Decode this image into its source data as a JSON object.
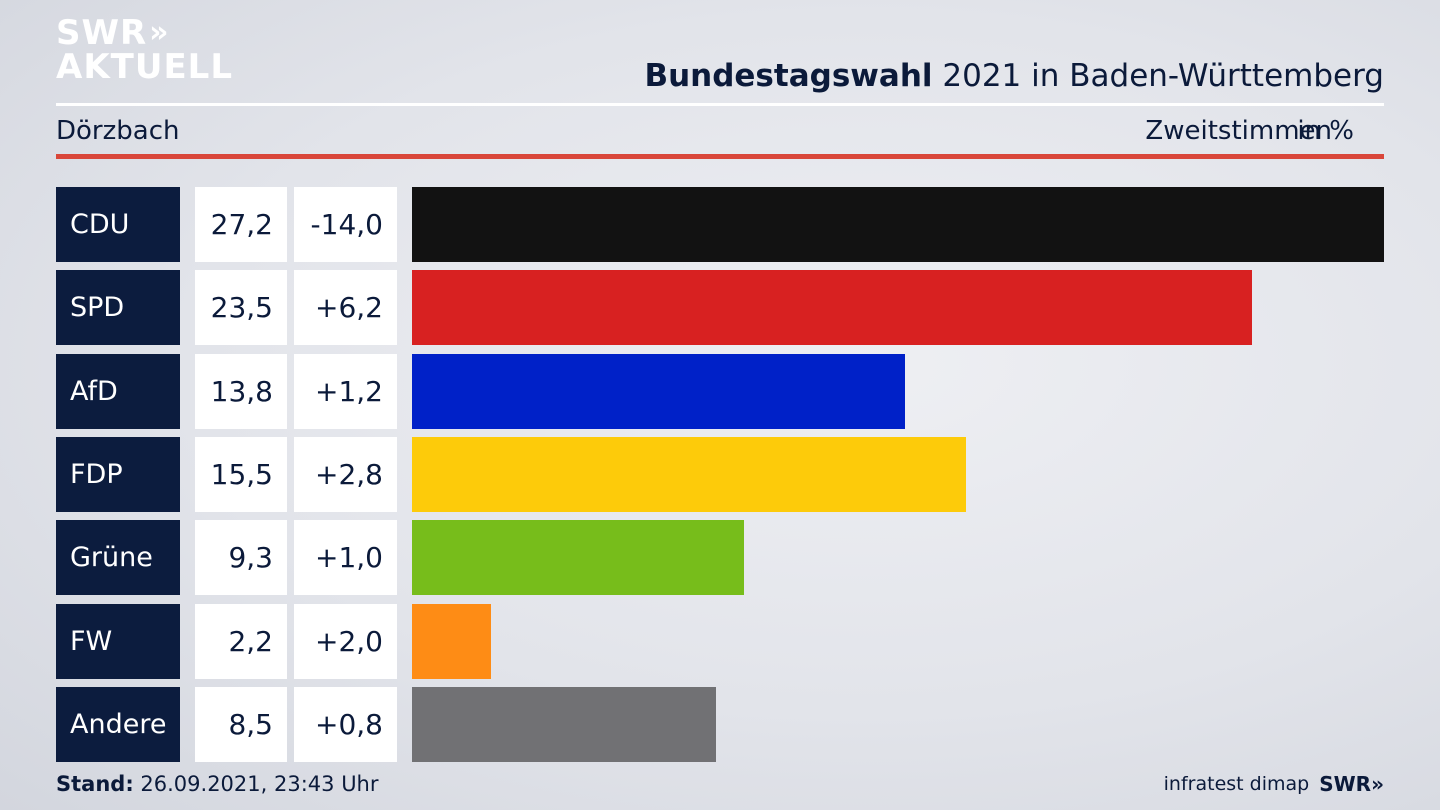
{
  "logo": {
    "line1": "SWR",
    "chevrons": "»",
    "line2": "AKTUELL"
  },
  "title": {
    "bold": "Bundestagswahl",
    "rest": "2021 in Baden-Württemberg"
  },
  "location": "Dörzbach",
  "metric": "Zweitstimmen",
  "unit": "in %",
  "chart_data": {
    "type": "bar",
    "orientation": "horizontal",
    "categories": [
      "CDU",
      "SPD",
      "AfD",
      "FDP",
      "Grüne",
      "FW",
      "Andere"
    ],
    "values": [
      27.2,
      23.5,
      13.8,
      15.5,
      9.3,
      2.2,
      8.5
    ],
    "value_labels": [
      "27,2",
      "23,5",
      "13,8",
      "15,5",
      "9,3",
      "2,2",
      "8,5"
    ],
    "diff_labels": [
      "-14,0",
      "+6,2",
      "+1,2",
      "+2,8",
      "+1,0",
      "+2,0",
      "+0,8"
    ],
    "colors": [
      "#121212",
      "#d82121",
      "#0021c8",
      "#fdcb0a",
      "#77bd1b",
      "#fe8c15",
      "#717174"
    ],
    "xlim": [
      0,
      27.2
    ]
  },
  "footer": {
    "stand_label": "Stand:",
    "stand_value": "26.09.2021, 23:43 Uhr",
    "source": "infratest dimap",
    "brand": "SWR»"
  }
}
